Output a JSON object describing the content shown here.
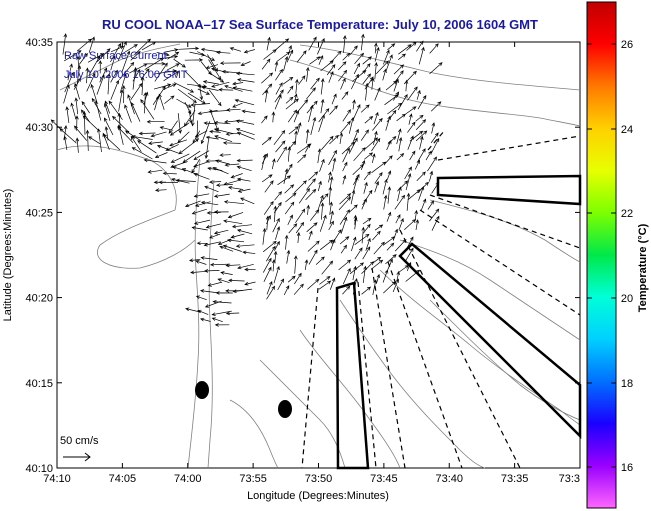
{
  "title": "RU COOL  NOAA–17  Sea Surface Temperature:  July 10, 2006 1604 GMT",
  "legend": {
    "line1": "Raw Surface Current",
    "line2": "July 10, 2006 16:00 GMT"
  },
  "scale_label": "50 cm/s",
  "axes": {
    "xlabel": "Longitude (Degrees:Minutes)",
    "ylabel": "Latitude (Degrees:Minutes)",
    "xticks": [
      "74:10",
      "74:05",
      "74:00",
      "73:55",
      "73:50",
      "73:45",
      "73:40",
      "73:35",
      "73:3"
    ],
    "yticks": [
      "40:35",
      "40:30",
      "40:25",
      "40:20",
      "40:15",
      "40:10"
    ]
  },
  "colorbar": {
    "label": "Temperature (°C)",
    "ticks": [
      "26",
      "24",
      "22",
      "20",
      "18",
      "16"
    ],
    "colors": [
      "#c00000",
      "#ff0000",
      "#ff7a00",
      "#ffd000",
      "#e8ff00",
      "#7cff00",
      "#00e84a",
      "#00ffd8",
      "#00d0ff",
      "#0070ff",
      "#1a00ff",
      "#9a00ff",
      "#ff66ff"
    ]
  }
}
